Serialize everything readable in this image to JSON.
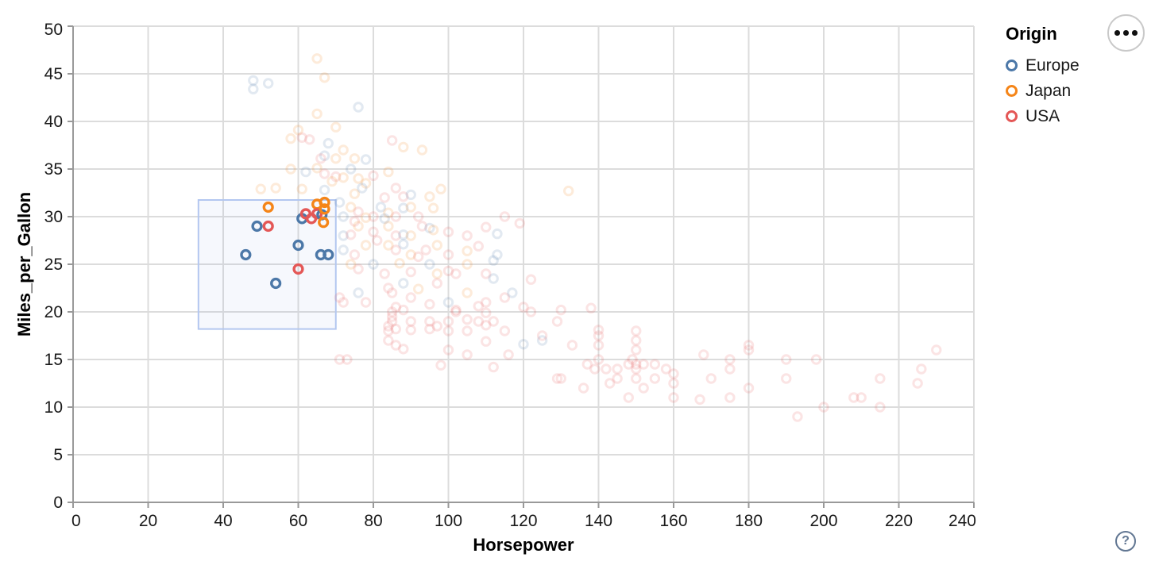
{
  "legend": {
    "title": "Origin",
    "items": [
      {
        "label": "Europe",
        "color": "#4c78a8"
      },
      {
        "label": "Japan",
        "color": "#f58518"
      },
      {
        "label": "USA",
        "color": "#e45756"
      }
    ]
  },
  "widgets": {
    "menu_button": "ellipsis-actions",
    "help_label": "?"
  },
  "chart_data": {
    "type": "scatter",
    "title": "",
    "xlabel": "Horsepower",
    "ylabel": "Miles_per_Gallon",
    "xlim": [
      0,
      240
    ],
    "ylim": [
      0,
      50
    ],
    "x_ticks": [
      0,
      20,
      40,
      60,
      80,
      100,
      120,
      140,
      160,
      180,
      200,
      220,
      240
    ],
    "y_ticks": [
      0,
      5,
      10,
      15,
      20,
      25,
      30,
      35,
      40,
      45,
      50
    ],
    "grid": true,
    "legend_position": "top-right",
    "colors": {
      "Europe": "#4c78a8",
      "Japan": "#f58518",
      "USA": "#e45756"
    },
    "grid_color": "#dcdcdc",
    "axis_color": "#999999",
    "label_color": "#1a1a1a",
    "faded_opacity": 0.16,
    "brush": {
      "x": [
        33.4,
        70.0
      ],
      "y": [
        18.2,
        31.75
      ],
      "fill": "#7da2e8",
      "fill_opacity": 0.07,
      "stroke": "#b3c7f0"
    },
    "origins": [
      "Europe",
      "Japan",
      "USA"
    ],
    "selected_points": [
      [
        46,
        26,
        0
      ],
      [
        49,
        29,
        0
      ],
      [
        52,
        31,
        1
      ],
      [
        52,
        29,
        2
      ],
      [
        54,
        23,
        0
      ],
      [
        60,
        24.5,
        2
      ],
      [
        60,
        27,
        0
      ],
      [
        61,
        29.8,
        0
      ],
      [
        62,
        30.3,
        2
      ],
      [
        63.5,
        29.8,
        2
      ],
      [
        65,
        31.3,
        1
      ],
      [
        65,
        30.3,
        2
      ],
      [
        66.3,
        30.2,
        0
      ],
      [
        66.7,
        29.4,
        1
      ],
      [
        67,
        31.5,
        1
      ],
      [
        67,
        30.8,
        1
      ],
      [
        66,
        26,
        0
      ],
      [
        68,
        26,
        0
      ]
    ],
    "points": [
      [
        65,
        46.6,
        1
      ],
      [
        67,
        44.6,
        1
      ],
      [
        48,
        44.3,
        0
      ],
      [
        48,
        43.4,
        0
      ],
      [
        52,
        44,
        0
      ],
      [
        76,
        41.5,
        0
      ],
      [
        65,
        40.8,
        1
      ],
      [
        70,
        39.4,
        1
      ],
      [
        60,
        39.1,
        1
      ],
      [
        58,
        38.2,
        1
      ],
      [
        63,
        38.1,
        2
      ],
      [
        61,
        38.3,
        2
      ],
      [
        68,
        37.7,
        0
      ],
      [
        85,
        38,
        2
      ],
      [
        88,
        37.3,
        1
      ],
      [
        93,
        37,
        1
      ],
      [
        67,
        36.4,
        0
      ],
      [
        70,
        36.1,
        1
      ],
      [
        66,
        36.1,
        2
      ],
      [
        72,
        37,
        1
      ],
      [
        75,
        36.1,
        1
      ],
      [
        78,
        36,
        0
      ],
      [
        58,
        35,
        1
      ],
      [
        62,
        34.7,
        0
      ],
      [
        65,
        35.1,
        1
      ],
      [
        67,
        34.5,
        2
      ],
      [
        70,
        34.2,
        2
      ],
      [
        72,
        34.1,
        1
      ],
      [
        74,
        35,
        0
      ],
      [
        76,
        34,
        1
      ],
      [
        80,
        34.3,
        2
      ],
      [
        84,
        34.7,
        1
      ],
      [
        50,
        32.9,
        1
      ],
      [
        54,
        33,
        1
      ],
      [
        61,
        32.9,
        1
      ],
      [
        67,
        32.8,
        0
      ],
      [
        69,
        33.7,
        1
      ],
      [
        75,
        32.4,
        1
      ],
      [
        78,
        33.5,
        1
      ],
      [
        77,
        33,
        0
      ],
      [
        83,
        32,
        2
      ],
      [
        86,
        33,
        2
      ],
      [
        88,
        32.1,
        2
      ],
      [
        90,
        32.3,
        0
      ],
      [
        95,
        32.1,
        1
      ],
      [
        98,
        32.9,
        1
      ],
      [
        132,
        32.7,
        1
      ],
      [
        71,
        31.5,
        0
      ],
      [
        72,
        30,
        0
      ],
      [
        74,
        31,
        1
      ],
      [
        76,
        30.5,
        2
      ],
      [
        78,
        29.9,
        1
      ],
      [
        80,
        30,
        2
      ],
      [
        82,
        31,
        0
      ],
      [
        84,
        30.4,
        1
      ],
      [
        86,
        30,
        2
      ],
      [
        88,
        30.9,
        0
      ],
      [
        90,
        31,
        1
      ],
      [
        92,
        30,
        2
      ],
      [
        83,
        29.8,
        0
      ],
      [
        75,
        29.5,
        2
      ],
      [
        96,
        30.9,
        1
      ],
      [
        115,
        30,
        2
      ],
      [
        119,
        29.3,
        2
      ],
      [
        72,
        28,
        0
      ],
      [
        74,
        28.1,
        2
      ],
      [
        76,
        29,
        1
      ],
      [
        80,
        28.4,
        2
      ],
      [
        84,
        29,
        1
      ],
      [
        86,
        28,
        2
      ],
      [
        88,
        28.1,
        0
      ],
      [
        90,
        28,
        1
      ],
      [
        93,
        29,
        2
      ],
      [
        95,
        28.8,
        0
      ],
      [
        96,
        28.6,
        1
      ],
      [
        100,
        28.4,
        2
      ],
      [
        105,
        28,
        2
      ],
      [
        110,
        28.9,
        2
      ],
      [
        113,
        28.2,
        0
      ],
      [
        72,
        26.5,
        0
      ],
      [
        75,
        26,
        2
      ],
      [
        78,
        27,
        1
      ],
      [
        81,
        27.5,
        2
      ],
      [
        84,
        27,
        1
      ],
      [
        86,
        26.5,
        2
      ],
      [
        88,
        27.1,
        0
      ],
      [
        90,
        26,
        1
      ],
      [
        94,
        26.5,
        2
      ],
      [
        97,
        27,
        1
      ],
      [
        100,
        26,
        2
      ],
      [
        105,
        26.4,
        1
      ],
      [
        108,
        26.9,
        2
      ],
      [
        113,
        26,
        0
      ],
      [
        74,
        25,
        1
      ],
      [
        76,
        24.5,
        2
      ],
      [
        80,
        25,
        0
      ],
      [
        83,
        24,
        2
      ],
      [
        87,
        25.1,
        1
      ],
      [
        90,
        24.2,
        2
      ],
      [
        95,
        25,
        0
      ],
      [
        97,
        24,
        1
      ],
      [
        100,
        24.3,
        2
      ],
      [
        105,
        25,
        1
      ],
      [
        110,
        24,
        2
      ],
      [
        112,
        25.4,
        0
      ],
      [
        102,
        24,
        2
      ],
      [
        92,
        25.8,
        2
      ],
      [
        71,
        21.5,
        2
      ],
      [
        72,
        21,
        2
      ],
      [
        76,
        22,
        0
      ],
      [
        78,
        21,
        2
      ],
      [
        84,
        22.5,
        2
      ],
      [
        85,
        22,
        2
      ],
      [
        88,
        23,
        0
      ],
      [
        90,
        21.5,
        2
      ],
      [
        92,
        22.4,
        1
      ],
      [
        95,
        20.8,
        2
      ],
      [
        97,
        23,
        2
      ],
      [
        100,
        21,
        0
      ],
      [
        102,
        20.2,
        2
      ],
      [
        105,
        22,
        1
      ],
      [
        108,
        20.6,
        2
      ],
      [
        110,
        21,
        2
      ],
      [
        112,
        23.5,
        0
      ],
      [
        115,
        21.5,
        2
      ],
      [
        117,
        22,
        0
      ],
      [
        120,
        20.5,
        2
      ],
      [
        122,
        23.4,
        2
      ],
      [
        130,
        20.2,
        2
      ],
      [
        138,
        20.4,
        2
      ],
      [
        84,
        18,
        2
      ],
      [
        84,
        18.5,
        2
      ],
      [
        85,
        19,
        2
      ],
      [
        85,
        19.5,
        2
      ],
      [
        85,
        20,
        2
      ],
      [
        86,
        20.5,
        2
      ],
      [
        86,
        18.2,
        2
      ],
      [
        88,
        20.2,
        2
      ],
      [
        90,
        19,
        2
      ],
      [
        90,
        18.1,
        2
      ],
      [
        95,
        18.2,
        2
      ],
      [
        95,
        19,
        2
      ],
      [
        97,
        18.5,
        2
      ],
      [
        100,
        18,
        2
      ],
      [
        100,
        19,
        2
      ],
      [
        102,
        20,
        2
      ],
      [
        105,
        18,
        2
      ],
      [
        105,
        19.2,
        2
      ],
      [
        108,
        19,
        2
      ],
      [
        110,
        18.6,
        2
      ],
      [
        110,
        19.9,
        2
      ],
      [
        112,
        19,
        2
      ],
      [
        115,
        18,
        2
      ],
      [
        122,
        20,
        2
      ],
      [
        129,
        19,
        2
      ],
      [
        140,
        18.1,
        2
      ],
      [
        150,
        18,
        2
      ],
      [
        71,
        15,
        2
      ],
      [
        73,
        15,
        2
      ],
      [
        84,
        17,
        2
      ],
      [
        86,
        16.5,
        2
      ],
      [
        88,
        16.1,
        2
      ],
      [
        98,
        14.4,
        2
      ],
      [
        100,
        16,
        2
      ],
      [
        105,
        15.5,
        2
      ],
      [
        110,
        16.9,
        2
      ],
      [
        112,
        14.2,
        2
      ],
      [
        116,
        15.5,
        2
      ],
      [
        120,
        16.6,
        0
      ],
      [
        125,
        17,
        0
      ],
      [
        125,
        17.5,
        2
      ],
      [
        133,
        16.5,
        2
      ],
      [
        137,
        14.5,
        2
      ],
      [
        140,
        17.5,
        2
      ],
      [
        140,
        16.5,
        2
      ],
      [
        140,
        15,
        2
      ],
      [
        139,
        14,
        2
      ],
      [
        142,
        14,
        2
      ],
      [
        145,
        14,
        2
      ],
      [
        148,
        14.5,
        2
      ],
      [
        149,
        15,
        2
      ],
      [
        150,
        17,
        2
      ],
      [
        150,
        16,
        2
      ],
      [
        150,
        14.5,
        2
      ],
      [
        150,
        14,
        2
      ],
      [
        152,
        14.5,
        2
      ],
      [
        155,
        14.5,
        2
      ],
      [
        158,
        14,
        2
      ],
      [
        160,
        13.5,
        2
      ],
      [
        168,
        15.5,
        2
      ],
      [
        175,
        15,
        2
      ],
      [
        175,
        14,
        2
      ],
      [
        180,
        16.5,
        2
      ],
      [
        180,
        16,
        2
      ],
      [
        190,
        15,
        2
      ],
      [
        198,
        15,
        2
      ],
      [
        226,
        14,
        2
      ],
      [
        230,
        16,
        2
      ],
      [
        129,
        13,
        2
      ],
      [
        130,
        13,
        2
      ],
      [
        136,
        12,
        2
      ],
      [
        143,
        12.5,
        2
      ],
      [
        145,
        13,
        2
      ],
      [
        148,
        11,
        2
      ],
      [
        150,
        13,
        2
      ],
      [
        152,
        12,
        2
      ],
      [
        155,
        13,
        2
      ],
      [
        160,
        12.5,
        2
      ],
      [
        160,
        11,
        2
      ],
      [
        167,
        10.8,
        2
      ],
      [
        170,
        13,
        2
      ],
      [
        175,
        11,
        2
      ],
      [
        180,
        12,
        2
      ],
      [
        190,
        13,
        2
      ],
      [
        215,
        13,
        2
      ],
      [
        225,
        12.5,
        2
      ],
      [
        200,
        10,
        2
      ],
      [
        208,
        11,
        2
      ],
      [
        210,
        11,
        2
      ],
      [
        215,
        10,
        2
      ],
      [
        193,
        9,
        2
      ]
    ]
  }
}
